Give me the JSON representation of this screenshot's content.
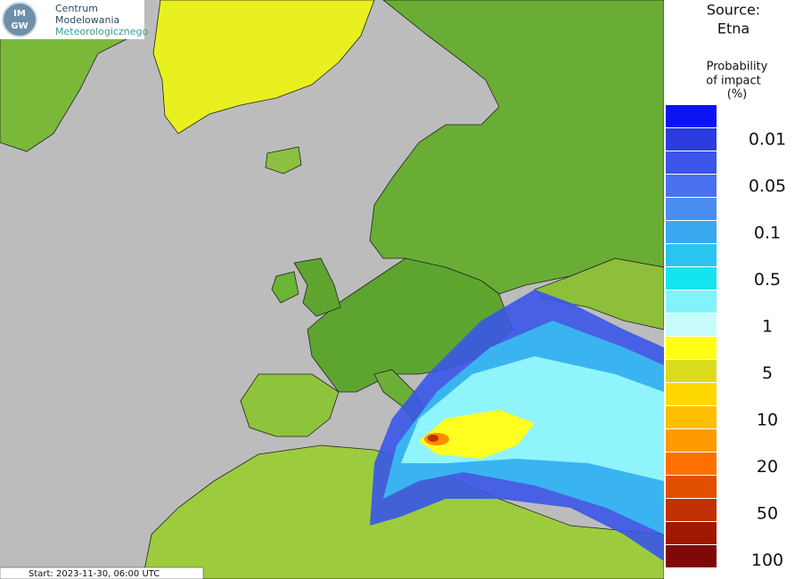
{
  "logo": {
    "badge_lines": [
      "IM",
      "GW"
    ],
    "name_lines": [
      "Centrum",
      "Modelowania",
      "Meteorologicznego"
    ]
  },
  "source": {
    "label": "Source:",
    "value": "Etna"
  },
  "legend": {
    "title_lines": [
      "Probability",
      "of impact",
      "(%)"
    ],
    "labels": [
      0.01,
      0.05,
      0.1,
      0.5,
      1,
      5,
      10,
      20,
      50,
      100
    ]
  },
  "start": "Start: 2023-11-30, 06:00 UTC"
}
